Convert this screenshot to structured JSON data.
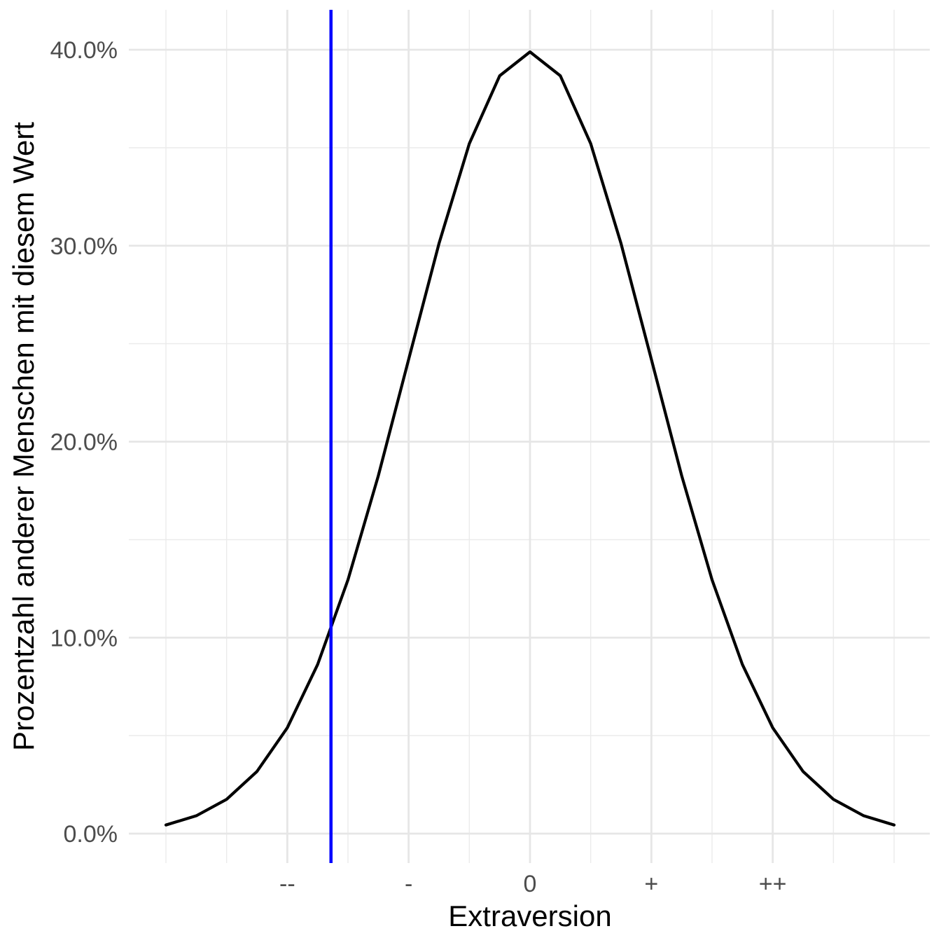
{
  "chart_data": {
    "type": "line",
    "title": "",
    "xlabel": "Extraversion",
    "ylabel": "Prozentzahl anderer Menschen mit diesem Wert",
    "xlim": [
      -3,
      3
    ],
    "ylim": [
      0,
      0.4
    ],
    "x_ticks": [
      {
        "value": -2,
        "label": "--"
      },
      {
        "value": -1,
        "label": "-"
      },
      {
        "value": 0,
        "label": "0"
      },
      {
        "value": 1,
        "label": "+"
      },
      {
        "value": 2,
        "label": "++"
      }
    ],
    "x_minor_ticks": [
      -3,
      -2.5,
      -1.5,
      -0.5,
      0.5,
      1.5,
      2.5,
      3
    ],
    "y_ticks": [
      {
        "value": 0.0,
        "label": "0.0%"
      },
      {
        "value": 0.1,
        "label": "10.0%"
      },
      {
        "value": 0.2,
        "label": "20.0%"
      },
      {
        "value": 0.3,
        "label": "30.0%"
      },
      {
        "value": 0.4,
        "label": "40.0%"
      }
    ],
    "y_minor_ticks": [
      0.05,
      0.15,
      0.25,
      0.35
    ],
    "grid": true,
    "legend": "none",
    "series": [
      {
        "kind": "normal-density-curve",
        "color": "#000000",
        "x": [
          -3.0,
          -2.75,
          -2.5,
          -2.25,
          -2.0,
          -1.75,
          -1.5,
          -1.25,
          -1.0,
          -0.75,
          -0.5,
          -0.25,
          0.0,
          0.25,
          0.5,
          0.75,
          1.0,
          1.25,
          1.5,
          1.75,
          2.0,
          2.25,
          2.5,
          2.75,
          3.0
        ],
        "y": [
          0.0044,
          0.0091,
          0.0175,
          0.0317,
          0.054,
          0.0863,
          0.1295,
          0.1826,
          0.242,
          0.3011,
          0.3521,
          0.3867,
          0.3989,
          0.3867,
          0.3521,
          0.3011,
          0.242,
          0.1826,
          0.1295,
          0.0863,
          0.054,
          0.0317,
          0.0175,
          0.0091,
          0.0044
        ]
      }
    ],
    "vertical_line": {
      "x": -1.64,
      "color": "#0000ff"
    }
  }
}
